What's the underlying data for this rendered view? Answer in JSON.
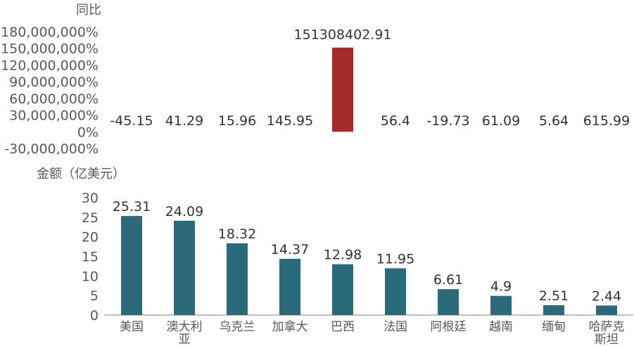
{
  "chart_data": [
    {
      "type": "bar",
      "ylabel": "同比",
      "unit_suffix": "%",
      "categories": [
        "美国",
        "澳大利亚",
        "乌克兰",
        "加拿大",
        "巴西",
        "法国",
        "阿根廷",
        "越南",
        "缅甸",
        "哈萨克斯坦"
      ],
      "values": [
        -45.15,
        41.29,
        15.96,
        145.95,
        151308402.91,
        56.4,
        -19.73,
        61.09,
        5.64,
        615.99
      ],
      "value_labels": [
        "-45.15",
        "41.29",
        "15.96",
        "145.95",
        "151308402.91",
        "56.4",
        "-19.73",
        "61.09",
        "5.64",
        "615.99"
      ],
      "yticks": [
        "180,000,000%",
        "150,000,000%",
        "120,000,000%",
        "90,000,000%",
        "60,000,000%",
        "30,000,000%",
        "0%",
        "-30,000,000%"
      ],
      "ylim": [
        -30000000,
        180000000
      ],
      "bar_color": "#a52a2a"
    },
    {
      "type": "bar",
      "ylabel": "金额（亿美元）",
      "categories": [
        "美国",
        "澳大利亚",
        "乌克兰",
        "加拿大",
        "巴西",
        "法国",
        "阿根廷",
        "越南",
        "缅甸",
        "哈萨克斯坦"
      ],
      "category_lines": [
        [
          "美国"
        ],
        [
          "澳大利",
          "亚"
        ],
        [
          "乌克兰"
        ],
        [
          "加拿大"
        ],
        [
          "巴西"
        ],
        [
          "法国"
        ],
        [
          "阿根廷"
        ],
        [
          "越南"
        ],
        [
          "缅甸"
        ],
        [
          "哈萨克",
          "斯坦"
        ]
      ],
      "values": [
        25.31,
        24.09,
        18.32,
        14.37,
        12.98,
        11.95,
        6.61,
        4.9,
        2.51,
        2.44
      ],
      "value_labels": [
        "25.31",
        "24.09",
        "18.32",
        "14.37",
        "12.98",
        "11.95",
        "6.61",
        "4.9",
        "2.51",
        "2.44"
      ],
      "yticks": [
        "30",
        "25",
        "20",
        "15",
        "10",
        "5",
        "0"
      ],
      "ylim": [
        0,
        30
      ],
      "bar_color": "#2a6a7a"
    }
  ]
}
